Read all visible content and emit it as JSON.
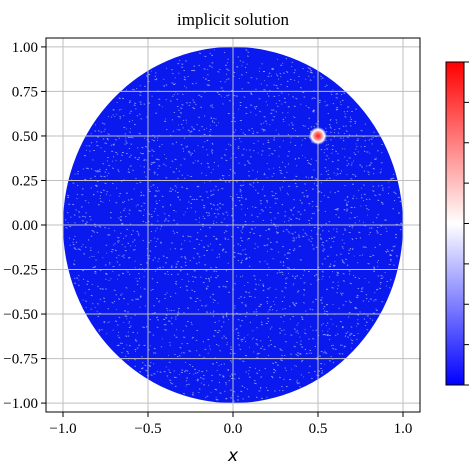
{
  "chart_data": {
    "type": "heatmap",
    "title": "implicit solution",
    "xlabel": "x",
    "ylabel": "",
    "xlim": [
      -1.1,
      1.1
    ],
    "ylim": [
      -1.05,
      1.05
    ],
    "x_ticks": [
      "−1.0",
      "−0.5",
      "0.0",
      "0.5",
      "1.0"
    ],
    "x_tick_values": [
      -1.0,
      -0.5,
      0.0,
      0.5,
      1.0
    ],
    "y_ticks": [
      "1.00",
      "0.75",
      "0.50",
      "0.25",
      "0.00",
      "−0.25",
      "−0.50",
      "−0.75",
      "−1.00"
    ],
    "y_tick_values": [
      1.0,
      0.75,
      0.5,
      0.25,
      0.0,
      -0.25,
      -0.5,
      -0.75,
      -1.0
    ],
    "grid": true,
    "domain": {
      "shape": "disk",
      "center": [
        0,
        0
      ],
      "radius": 1.0
    },
    "features": [
      {
        "kind": "hot-spot",
        "center": [
          0.5,
          0.5
        ],
        "value": "high"
      }
    ],
    "colormap": {
      "name": "bwr",
      "colors": [
        "#0000ff",
        "#ffffff",
        "#ff0000"
      ],
      "tick_count": 9
    },
    "colors": {
      "field": "#0a1aee",
      "grid": "#bfbfbf",
      "speckle": "#ffffff"
    }
  }
}
